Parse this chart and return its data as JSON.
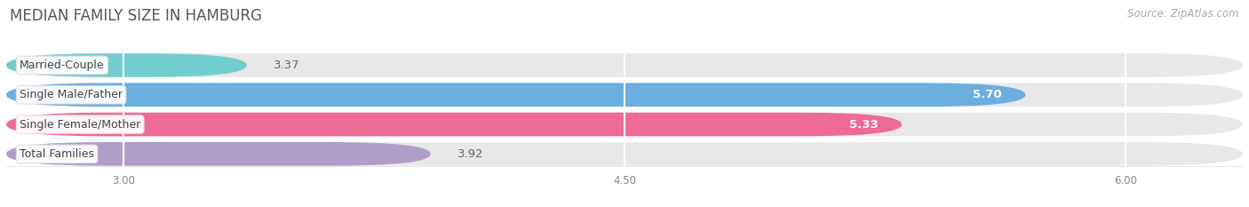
{
  "title": "MEDIAN FAMILY SIZE IN HAMBURG",
  "source": "Source: ZipAtlas.com",
  "categories": [
    "Married-Couple",
    "Single Male/Father",
    "Single Female/Mother",
    "Total Families"
  ],
  "values": [
    3.37,
    5.7,
    5.33,
    3.92
  ],
  "bar_colors": [
    "#72cece",
    "#6baee0",
    "#ee6b96",
    "#b09ec8"
  ],
  "bar_bg_color": "#e8e8e8",
  "xlim_data": [
    3.0,
    6.0
  ],
  "xlim_display": [
    2.65,
    6.35
  ],
  "xticks": [
    3.0,
    4.5,
    6.0
  ],
  "xtick_labels": [
    "3.00",
    "4.50",
    "6.00"
  ],
  "bar_height": 0.6,
  "bar_gap": 0.15,
  "value_fontsize": 9.5,
  "label_fontsize": 9,
  "title_fontsize": 12,
  "source_fontsize": 8.5,
  "background_color": "#ffffff",
  "grid_color": "#ffffff",
  "title_color": "#555555",
  "source_color": "#aaaaaa"
}
